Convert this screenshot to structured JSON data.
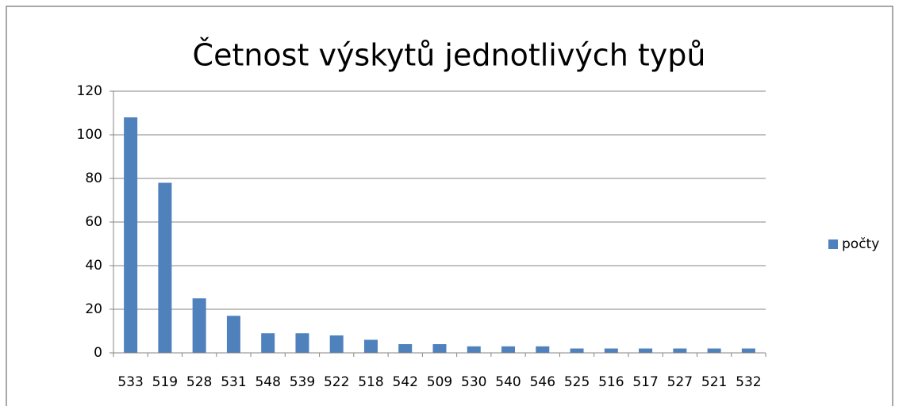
{
  "chart_data": {
    "type": "bar",
    "title": "Četnost výskytů jednotlivých typů",
    "categories": [
      "533",
      "519",
      "528",
      "531",
      "548",
      "539",
      "522",
      "518",
      "542",
      "509",
      "530",
      "540",
      "546",
      "525",
      "516",
      "517",
      "527",
      "521",
      "532"
    ],
    "series": [
      {
        "name": "počty",
        "color": "#4f81bd",
        "values": [
          108,
          78,
          25,
          17,
          9,
          9,
          8,
          6,
          4,
          4,
          3,
          3,
          3,
          2,
          2,
          2,
          2,
          2,
          2
        ]
      }
    ],
    "ylim": [
      0,
      120
    ],
    "yticks": [
      0,
      20,
      40,
      60,
      80,
      100,
      120
    ],
    "grid": true,
    "legend": "right"
  }
}
